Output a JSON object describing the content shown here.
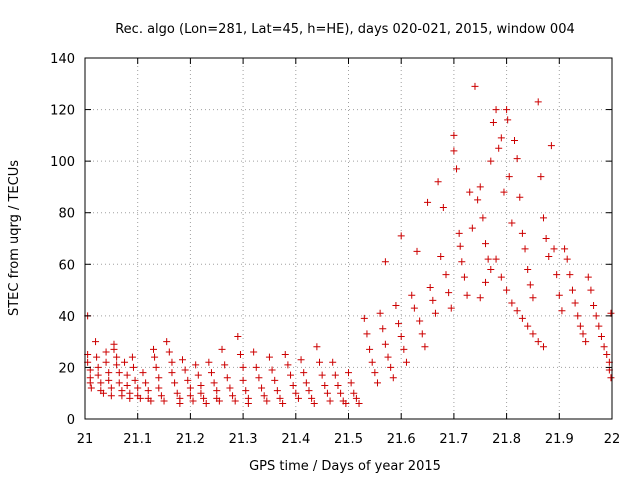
{
  "chart_data": {
    "type": "scatter",
    "title": "Rec. algo (Lon=281, Lat=45, h=HE), days 020-021, 2015, window 004",
    "xlabel": "GPS time / Days of year 2015",
    "ylabel": "STEC from uqrg / TECUs",
    "xlim": [
      21,
      22
    ],
    "ylim": [
      0,
      140
    ],
    "xticks": [
      21,
      21.1,
      21.2,
      21.3,
      21.4,
      21.5,
      21.6,
      21.7,
      21.8,
      21.9,
      22
    ],
    "xtick_labels": [
      "21",
      "21.1",
      "21.2",
      "21.3",
      "21.4",
      "21.5",
      "21.6",
      "21.7",
      "21.8",
      "21.9",
      "22"
    ],
    "yticks": [
      0,
      20,
      40,
      60,
      80,
      100,
      120,
      140
    ],
    "ytick_labels": [
      "0",
      "20",
      "40",
      "60",
      "80",
      "100",
      "120",
      "140"
    ],
    "grid": true,
    "legend": "none",
    "marker": "plus",
    "color": "#cc0000",
    "points": [
      [
        21.005,
        40
      ],
      [
        21.005,
        25
      ],
      [
        21.005,
        22
      ],
      [
        21.01,
        19
      ],
      [
        21.01,
        16
      ],
      [
        21.01,
        14
      ],
      [
        21.012,
        12
      ],
      [
        21.02,
        30
      ],
      [
        21.022,
        24
      ],
      [
        21.025,
        20
      ],
      [
        21.025,
        17
      ],
      [
        21.03,
        14
      ],
      [
        21.03,
        11
      ],
      [
        21.035,
        10
      ],
      [
        21.04,
        26
      ],
      [
        21.04,
        22
      ],
      [
        21.045,
        18
      ],
      [
        21.045,
        15
      ],
      [
        21.05,
        12
      ],
      [
        21.05,
        9
      ],
      [
        21.055,
        29
      ],
      [
        21.055,
        27
      ],
      [
        21.06,
        24
      ],
      [
        21.06,
        21
      ],
      [
        21.065,
        18
      ],
      [
        21.065,
        14
      ],
      [
        21.07,
        11
      ],
      [
        21.07,
        9
      ],
      [
        21.075,
        22
      ],
      [
        21.08,
        17
      ],
      [
        21.08,
        13
      ],
      [
        21.085,
        10
      ],
      [
        21.085,
        8
      ],
      [
        21.09,
        24
      ],
      [
        21.092,
        20
      ],
      [
        21.095,
        15
      ],
      [
        21.1,
        12
      ],
      [
        21.1,
        9
      ],
      [
        21.105,
        8
      ],
      [
        21.11,
        18
      ],
      [
        21.115,
        14
      ],
      [
        21.12,
        11
      ],
      [
        21.12,
        8
      ],
      [
        21.125,
        7
      ],
      [
        21.13,
        27
      ],
      [
        21.132,
        24
      ],
      [
        21.135,
        20
      ],
      [
        21.14,
        16
      ],
      [
        21.14,
        12
      ],
      [
        21.145,
        9
      ],
      [
        21.15,
        7
      ],
      [
        21.155,
        30
      ],
      [
        21.16,
        26
      ],
      [
        21.165,
        22
      ],
      [
        21.165,
        18
      ],
      [
        21.17,
        14
      ],
      [
        21.175,
        10
      ],
      [
        21.18,
        8
      ],
      [
        21.18,
        6
      ],
      [
        21.185,
        23
      ],
      [
        21.19,
        19
      ],
      [
        21.195,
        15
      ],
      [
        21.2,
        12
      ],
      [
        21.2,
        9
      ],
      [
        21.205,
        7
      ],
      [
        21.21,
        21
      ],
      [
        21.215,
        17
      ],
      [
        21.22,
        13
      ],
      [
        21.22,
        10
      ],
      [
        21.225,
        8
      ],
      [
        21.23,
        6
      ],
      [
        21.235,
        22
      ],
      [
        21.24,
        18
      ],
      [
        21.245,
        14
      ],
      [
        21.25,
        11
      ],
      [
        21.25,
        8
      ],
      [
        21.255,
        7
      ],
      [
        21.26,
        27
      ],
      [
        21.265,
        21
      ],
      [
        21.27,
        16
      ],
      [
        21.275,
        12
      ],
      [
        21.28,
        9
      ],
      [
        21.285,
        7
      ],
      [
        21.29,
        32
      ],
      [
        21.295,
        25
      ],
      [
        21.3,
        20
      ],
      [
        21.3,
        15
      ],
      [
        21.305,
        11
      ],
      [
        21.31,
        8
      ],
      [
        21.31,
        6
      ],
      [
        21.32,
        26
      ],
      [
        21.325,
        20
      ],
      [
        21.33,
        16
      ],
      [
        21.335,
        12
      ],
      [
        21.34,
        9
      ],
      [
        21.345,
        7
      ],
      [
        21.35,
        24
      ],
      [
        21.355,
        19
      ],
      [
        21.36,
        15
      ],
      [
        21.365,
        11
      ],
      [
        21.37,
        8
      ],
      [
        21.375,
        6
      ],
      [
        21.38,
        25
      ],
      [
        21.385,
        21
      ],
      [
        21.39,
        17
      ],
      [
        21.395,
        13
      ],
      [
        21.4,
        10
      ],
      [
        21.405,
        8
      ],
      [
        21.41,
        23
      ],
      [
        21.415,
        18
      ],
      [
        21.42,
        14
      ],
      [
        21.425,
        11
      ],
      [
        21.43,
        8
      ],
      [
        21.435,
        6
      ],
      [
        21.44,
        28
      ],
      [
        21.445,
        22
      ],
      [
        21.45,
        17
      ],
      [
        21.455,
        13
      ],
      [
        21.46,
        10
      ],
      [
        21.465,
        7
      ],
      [
        21.47,
        22
      ],
      [
        21.475,
        17
      ],
      [
        21.48,
        13
      ],
      [
        21.485,
        10
      ],
      [
        21.49,
        7
      ],
      [
        21.495,
        6
      ],
      [
        21.5,
        18
      ],
      [
        21.505,
        14
      ],
      [
        21.51,
        10
      ],
      [
        21.515,
        8
      ],
      [
        21.52,
        6
      ],
      [
        21.53,
        39
      ],
      [
        21.535,
        33
      ],
      [
        21.54,
        27
      ],
      [
        21.545,
        22
      ],
      [
        21.55,
        18
      ],
      [
        21.555,
        14
      ],
      [
        21.56,
        41
      ],
      [
        21.565,
        35
      ],
      [
        21.57,
        29
      ],
      [
        21.575,
        24
      ],
      [
        21.58,
        20
      ],
      [
        21.585,
        16
      ],
      [
        21.57,
        61
      ],
      [
        21.59,
        44
      ],
      [
        21.595,
        37
      ],
      [
        21.6,
        71
      ],
      [
        21.6,
        32
      ],
      [
        21.605,
        27
      ],
      [
        21.61,
        22
      ],
      [
        21.62,
        48
      ],
      [
        21.625,
        43
      ],
      [
        21.63,
        65
      ],
      [
        21.635,
        38
      ],
      [
        21.64,
        33
      ],
      [
        21.645,
        28
      ],
      [
        21.65,
        84
      ],
      [
        21.655,
        51
      ],
      [
        21.66,
        46
      ],
      [
        21.665,
        41
      ],
      [
        21.67,
        92
      ],
      [
        21.675,
        63
      ],
      [
        21.68,
        82
      ],
      [
        21.685,
        56
      ],
      [
        21.69,
        49
      ],
      [
        21.695,
        43
      ],
      [
        21.7,
        110
      ],
      [
        21.7,
        104
      ],
      [
        21.705,
        97
      ],
      [
        21.71,
        72
      ],
      [
        21.712,
        67
      ],
      [
        21.715,
        61
      ],
      [
        21.72,
        55
      ],
      [
        21.725,
        48
      ],
      [
        21.73,
        88
      ],
      [
        21.735,
        74
      ],
      [
        21.74,
        129
      ],
      [
        21.745,
        85
      ],
      [
        21.75,
        90
      ],
      [
        21.755,
        78
      ],
      [
        21.76,
        68
      ],
      [
        21.765,
        62
      ],
      [
        21.77,
        100
      ],
      [
        21.775,
        115
      ],
      [
        21.78,
        120
      ],
      [
        21.785,
        105
      ],
      [
        21.79,
        109
      ],
      [
        21.795,
        88
      ],
      [
        21.8,
        120
      ],
      [
        21.802,
        116
      ],
      [
        21.805,
        94
      ],
      [
        21.81,
        76
      ],
      [
        21.815,
        108
      ],
      [
        21.82,
        101
      ],
      [
        21.825,
        86
      ],
      [
        21.83,
        72
      ],
      [
        21.835,
        66
      ],
      [
        21.84,
        58
      ],
      [
        21.845,
        52
      ],
      [
        21.85,
        47
      ],
      [
        21.86,
        123
      ],
      [
        21.865,
        94
      ],
      [
        21.87,
        78
      ],
      [
        21.875,
        70
      ],
      [
        21.88,
        63
      ],
      [
        21.885,
        106
      ],
      [
        21.89,
        66
      ],
      [
        21.895,
        56
      ],
      [
        21.9,
        48
      ],
      [
        21.905,
        42
      ],
      [
        21.91,
        66
      ],
      [
        21.915,
        62
      ],
      [
        21.92,
        56
      ],
      [
        21.925,
        50
      ],
      [
        21.93,
        45
      ],
      [
        21.935,
        40
      ],
      [
        21.94,
        36
      ],
      [
        21.945,
        33
      ],
      [
        21.95,
        30
      ],
      [
        21.955,
        55
      ],
      [
        21.96,
        50
      ],
      [
        21.965,
        44
      ],
      [
        21.97,
        40
      ],
      [
        21.975,
        36
      ],
      [
        21.98,
        32
      ],
      [
        21.985,
        28
      ],
      [
        21.99,
        25
      ],
      [
        21.995,
        22
      ],
      [
        21.995,
        19
      ],
      [
        21.998,
        16
      ],
      [
        21.998,
        41
      ],
      [
        21.75,
        47
      ],
      [
        21.76,
        53
      ],
      [
        21.77,
        58
      ],
      [
        21.78,
        62
      ],
      [
        21.79,
        55
      ],
      [
        21.8,
        50
      ],
      [
        21.81,
        45
      ],
      [
        21.82,
        42
      ],
      [
        21.83,
        39
      ],
      [
        21.84,
        36
      ],
      [
        21.85,
        33
      ],
      [
        21.86,
        30
      ],
      [
        21.87,
        28
      ]
    ]
  }
}
